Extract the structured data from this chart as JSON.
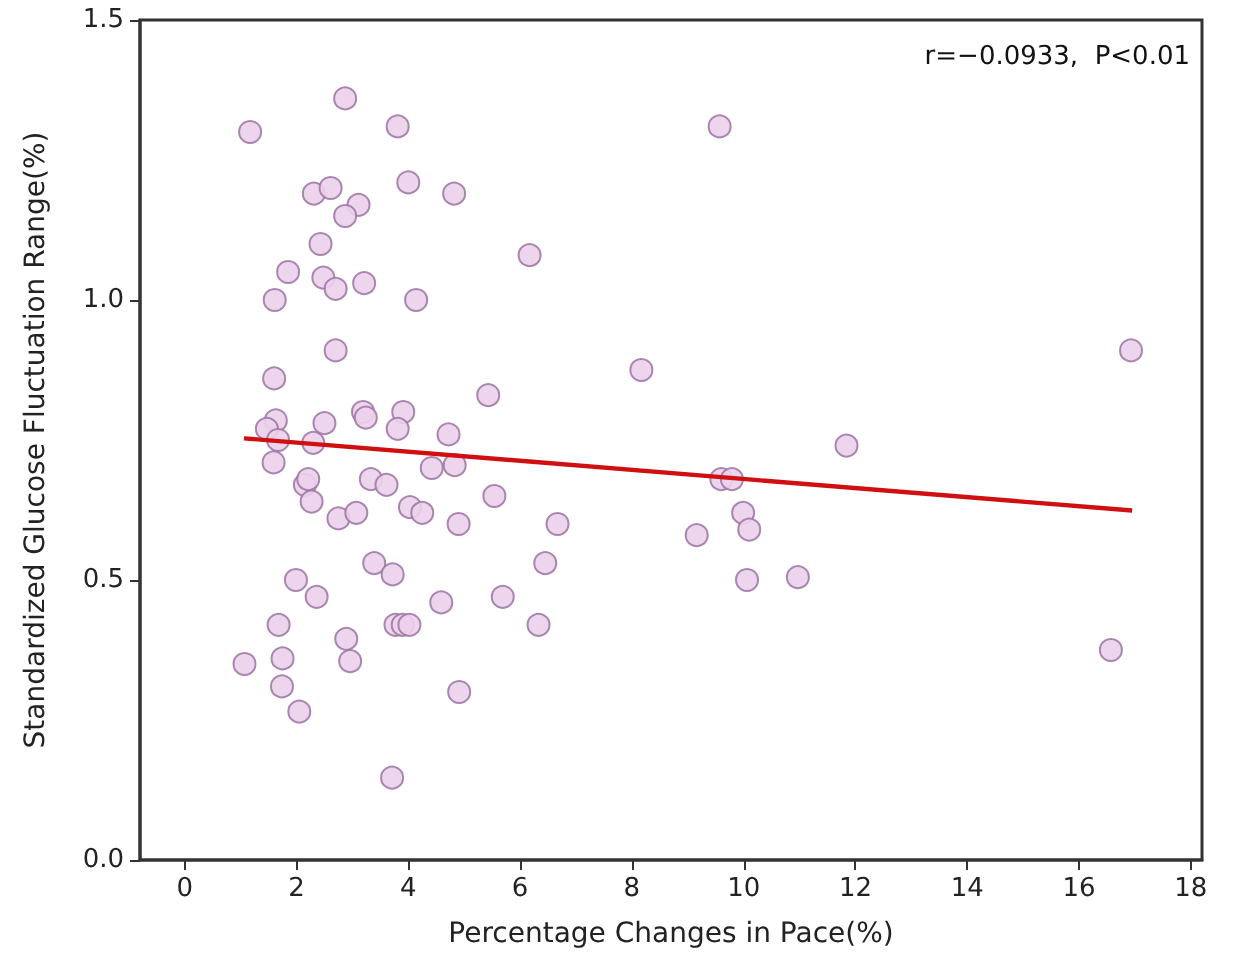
{
  "chart_data": {
    "type": "scatter",
    "xlabel": "Percentage Changes in Pace(%)",
    "ylabel": "Standardized Glucose Fluctuation Range(%)",
    "annotations": [
      "r=−0.0933,  P<0.01"
    ],
    "xlim": [
      -0.8,
      18.2
    ],
    "xticks": [
      0,
      2,
      4,
      6,
      8,
      10,
      12,
      14,
      16,
      18
    ],
    "ylim": [
      0,
      1.5
    ],
    "yticks": [
      {
        "value": 0,
        "label": "0.0"
      },
      {
        "value": 0.5,
        "label": "0.5"
      },
      {
        "value": 1,
        "label": "1.0"
      },
      {
        "value": 1.5,
        "label": "1.5"
      }
    ],
    "grid": false,
    "marker": "circle",
    "series": [
      {
        "color": "#ecd0ec",
        "x": [
          2.87,
          1.17,
          3.81,
          2.31,
          2.61,
          4.0,
          4.82,
          3.11,
          2.87,
          2.43,
          6.17,
          1.85,
          2.48,
          2.7,
          3.21,
          1.61,
          4.14,
          2.7,
          1.6,
          5.43,
          3.19,
          3.24,
          3.91,
          1.63,
          2.5,
          1.47,
          3.81,
          4.72,
          2.3,
          1.67,
          1.59,
          2.15,
          2.21,
          2.27,
          3.33,
          3.61,
          4.42,
          4.83,
          5.54,
          2.75,
          3.07,
          4.03,
          4.25,
          4.9,
          1.99,
          2.36,
          3.39,
          3.72,
          4.59,
          5.69,
          1.68,
          3.77,
          3.9,
          4.02,
          2.89,
          1.75,
          1.07,
          2.96,
          1.74,
          4.91,
          2.05,
          3.71,
          8.17,
          9.57,
          11.84,
          9.6,
          9.79,
          9.99,
          10.1,
          9.16,
          10.06,
          10.97,
          16.93,
          16.57,
          6.67,
          6.45,
          6.33
        ],
        "values": [
          1.36,
          1.3,
          1.31,
          1.19,
          1.2,
          1.21,
          1.19,
          1.17,
          1.15,
          1.1,
          1.08,
          1.05,
          1.04,
          1.02,
          1.03,
          1.0,
          1.0,
          0.91,
          0.86,
          0.83,
          0.8,
          0.79,
          0.8,
          0.785,
          0.78,
          0.77,
          0.77,
          0.76,
          0.745,
          0.75,
          0.71,
          0.67,
          0.68,
          0.64,
          0.68,
          0.67,
          0.7,
          0.705,
          0.65,
          0.61,
          0.62,
          0.63,
          0.62,
          0.6,
          0.5,
          0.47,
          0.53,
          0.51,
          0.46,
          0.47,
          0.42,
          0.42,
          0.42,
          0.42,
          0.395,
          0.36,
          0.35,
          0.355,
          0.31,
          0.3,
          0.265,
          0.147,
          0.875,
          1.31,
          0.74,
          0.68,
          0.68,
          0.62,
          0.59,
          0.58,
          0.5,
          0.505,
          0.91,
          0.375,
          0.6,
          0.53,
          0.42
        ]
      },
      {
        "type": "line",
        "color": "#d01010",
        "marker": "none",
        "x": [
          1.06,
          16.95
        ],
        "values": [
          0.753,
          0.624
        ]
      }
    ]
  }
}
